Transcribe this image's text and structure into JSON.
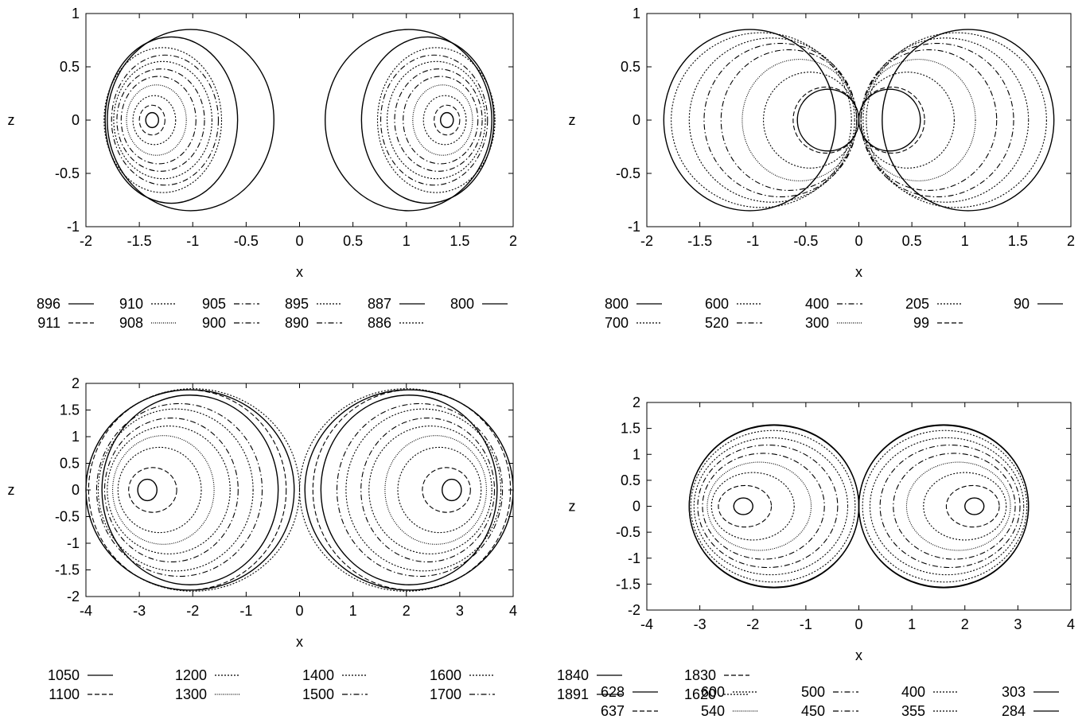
{
  "chart_data": [
    {
      "type": "line",
      "panel": "top-left",
      "xlabel": "x",
      "ylabel": "z",
      "xlim": [
        -2,
        2
      ],
      "ylim": [
        -1,
        1
      ],
      "xticks": [
        "-2",
        "-1.5",
        "-1",
        "-0.5",
        "0",
        "0.5",
        "1",
        "1.5",
        "2"
      ],
      "yticks": [
        "-1",
        "-0.5",
        "0",
        "0.5",
        "1"
      ],
      "grid": false,
      "legend_position": "below",
      "series": [
        {
          "name": "896",
          "style": "solid",
          "cx": 1.38,
          "rx": 0.06,
          "rz": 0.07
        },
        {
          "name": "911",
          "style": "dashed",
          "cx": 1.38,
          "rx": 0.12,
          "rz": 0.14
        },
        {
          "name": "910",
          "style": "dotted",
          "cx": 1.36,
          "rx": 0.2,
          "rz": 0.23
        },
        {
          "name": "908",
          "style": "finedot",
          "cx": 1.34,
          "rx": 0.28,
          "rz": 0.33
        },
        {
          "name": "905",
          "style": "dashdot",
          "cx": 1.32,
          "rx": 0.35,
          "rz": 0.41
        },
        {
          "name": "900",
          "style": "dashdot",
          "cx": 1.3,
          "rx": 0.41,
          "rz": 0.48
        },
        {
          "name": "895",
          "style": "dotted",
          "cx": 1.28,
          "rx": 0.46,
          "rz": 0.55
        },
        {
          "name": "890",
          "style": "dashdot",
          "cx": 1.26,
          "rx": 0.5,
          "rz": 0.61
        },
        {
          "name": "887",
          "style": "solid",
          "cx": 1.2,
          "rx": 0.62,
          "rz": 0.78
        },
        {
          "name": "886",
          "style": "dotted",
          "cx": 1.28,
          "rx": 0.55,
          "rz": 0.68
        },
        {
          "name": "800",
          "style": "solid",
          "cx": 1.02,
          "rx": 0.78,
          "rz": 0.85
        }
      ]
    },
    {
      "type": "line",
      "panel": "top-right",
      "xlabel": "x",
      "ylabel": "z",
      "xlim": [
        -2,
        2
      ],
      "ylim": [
        -1,
        1
      ],
      "xticks": [
        "-2",
        "-1.5",
        "-1",
        "-0.5",
        "0",
        "0.5",
        "1",
        "1.5",
        "2"
      ],
      "yticks": [
        "-1",
        "-0.5",
        "0",
        "0.5",
        "1"
      ],
      "grid": false,
      "legend_position": "below",
      "series": [
        {
          "name": "800",
          "style": "solid",
          "cx": 1.03,
          "rx": 0.81,
          "rz": 0.85
        },
        {
          "name": "700",
          "style": "dotted",
          "cx": 0.92,
          "rx": 0.85,
          "rz": 0.82
        },
        {
          "name": "600",
          "style": "dotted",
          "cx": 0.82,
          "rx": 0.78,
          "rz": 0.77
        },
        {
          "name": "520",
          "style": "dashdot",
          "cx": 0.74,
          "rx": 0.72,
          "rz": 0.72
        },
        {
          "name": "400",
          "style": "dashdot",
          "cx": 0.66,
          "rx": 0.64,
          "rz": 0.66
        },
        {
          "name": "300",
          "style": "finedot",
          "cx": 0.56,
          "rx": 0.54,
          "rz": 0.57
        },
        {
          "name": "205",
          "style": "dotted",
          "cx": 0.46,
          "rx": 0.44,
          "rz": 0.45
        },
        {
          "name": "99",
          "style": "dashed",
          "cx": 0.31,
          "rx": 0.31,
          "rz": 0.31
        },
        {
          "name": "90",
          "style": "solid",
          "cx": 0.29,
          "rx": 0.29,
          "rz": 0.29
        }
      ]
    },
    {
      "type": "line",
      "panel": "bottom-left",
      "xlabel": "x",
      "ylabel": "z",
      "xlim": [
        -4,
        4
      ],
      "ylim": [
        -2,
        2
      ],
      "xticks": [
        "-4",
        "-3",
        "-2",
        "-1",
        "0",
        "1",
        "2",
        "3",
        "4"
      ],
      "yticks": [
        "-2",
        "-1.5",
        "-1",
        "-0.5",
        "0",
        "0.5",
        "1",
        "1.5",
        "2"
      ],
      "grid": false,
      "legend_position": "below",
      "series": [
        {
          "name": "1050",
          "style": "solid",
          "cx": 2.85,
          "rx": 0.18,
          "rz": 0.2
        },
        {
          "name": "1100",
          "style": "dashed",
          "cx": 2.75,
          "rx": 0.45,
          "rz": 0.42
        },
        {
          "name": "1200",
          "style": "dotted",
          "cx": 2.62,
          "rx": 0.78,
          "rz": 0.8
        },
        {
          "name": "1300",
          "style": "finedot",
          "cx": 2.55,
          "rx": 0.95,
          "rz": 1.02
        },
        {
          "name": "1400",
          "style": "dotted",
          "cx": 2.45,
          "rx": 1.15,
          "rz": 1.2
        },
        {
          "name": "1500",
          "style": "dashdot",
          "cx": 2.4,
          "rx": 1.25,
          "rz": 1.35
        },
        {
          "name": "1600",
          "style": "dotted",
          "cx": 2.32,
          "rx": 1.45,
          "rz": 1.52
        },
        {
          "name": "1700",
          "style": "dashdot",
          "cx": 2.25,
          "rx": 1.55,
          "rz": 1.62
        },
        {
          "name": "1840",
          "style": "solid",
          "cx": 2.05,
          "rx": 1.65,
          "rz": 1.78
        },
        {
          "name": "1891",
          "style": "solid",
          "cx": 2.05,
          "rx": 1.95,
          "rz": 1.88
        },
        {
          "name": "1830",
          "style": "dashed",
          "cx": 2.1,
          "rx": 1.85,
          "rz": 1.88
        },
        {
          "name": "1620",
          "style": "dotted",
          "cx": 2.0,
          "rx": 2.0,
          "rz": 1.9
        }
      ]
    },
    {
      "type": "line",
      "panel": "bottom-right",
      "xlabel": "x",
      "ylabel": "z",
      "xlim": [
        -4,
        4
      ],
      "ylim": [
        -2,
        2
      ],
      "xticks": [
        "-4",
        "-3",
        "-2",
        "-1",
        "0",
        "1",
        "2",
        "3",
        "4"
      ],
      "yticks": [
        "-2",
        "-1.5",
        "-1",
        "-0.5",
        "0",
        "0.5",
        "1",
        "1.5",
        "2"
      ],
      "grid": false,
      "legend_position": "below",
      "series": [
        {
          "name": "628",
          "style": "solid",
          "cx": 2.18,
          "rx": 0.18,
          "rz": 0.16
        },
        {
          "name": "637",
          "style": "dashed",
          "cx": 2.15,
          "rx": 0.5,
          "rz": 0.4
        },
        {
          "name": "600",
          "style": "dotted",
          "cx": 2.0,
          "rx": 0.78,
          "rz": 0.65
        },
        {
          "name": "540",
          "style": "finedot",
          "cx": 1.88,
          "rx": 0.98,
          "rz": 0.85
        },
        {
          "name": "500",
          "style": "dashdot",
          "cx": 1.8,
          "rx": 1.15,
          "rz": 1.02
        },
        {
          "name": "450",
          "style": "dashdot",
          "cx": 1.72,
          "rx": 1.32,
          "rz": 1.18
        },
        {
          "name": "400",
          "style": "dotted",
          "cx": 1.66,
          "rx": 1.45,
          "rz": 1.32
        },
        {
          "name": "355",
          "style": "dotted",
          "cx": 1.62,
          "rx": 1.55,
          "rz": 1.46
        },
        {
          "name": "303",
          "style": "solid",
          "cx": 1.6,
          "rx": 1.6,
          "rz": 1.57
        },
        {
          "name": "284",
          "style": "solid",
          "cx": 1.6,
          "rx": 1.6,
          "rz": 1.56
        }
      ]
    }
  ]
}
